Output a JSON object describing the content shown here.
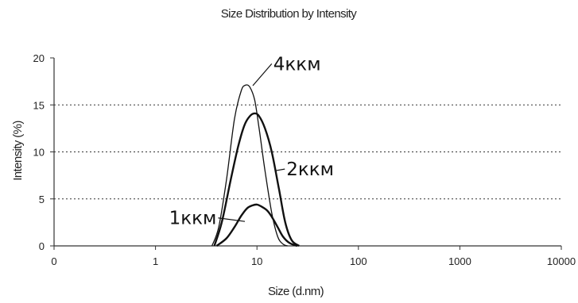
{
  "chart_data": {
    "type": "line",
    "title": "Size Distribution by Intensity",
    "xlabel": "Size (d.nm)",
    "ylabel": "Intensity (%)",
    "x_scale": "log",
    "xlim": [
      0.1,
      10000
    ],
    "ylim": [
      0,
      20
    ],
    "x_ticks": [
      0.1,
      1,
      10,
      100,
      1000,
      10000
    ],
    "x_tick_labels": [
      "0",
      "1",
      "10",
      "100",
      "1000",
      "10000"
    ],
    "y_ticks": [
      0,
      5,
      10,
      15,
      20
    ],
    "y_tick_labels": [
      "0",
      "5",
      "10",
      "15",
      "20"
    ],
    "grid": "horizontal dotted at 5, 10, 15",
    "series": [
      {
        "name": "4ккм",
        "x": [
          3.6,
          4.2,
          5.0,
          6.0,
          7.0,
          7.7,
          8.5,
          9.5,
          10.5,
          12.0,
          14.0,
          16.0,
          18.0,
          20.0
        ],
        "y": [
          0,
          2.0,
          7.0,
          13.5,
          16.5,
          17.1,
          16.9,
          15.5,
          12.5,
          8.0,
          3.5,
          1.0,
          0.2,
          0
        ]
      },
      {
        "name": "2ккм",
        "x": [
          3.8,
          4.5,
          5.5,
          6.5,
          7.5,
          8.5,
          9.5,
          10.5,
          12.0,
          14.0,
          16.5,
          19.0,
          22.0,
          26.0
        ],
        "y": [
          0,
          2.5,
          7.0,
          10.5,
          12.8,
          13.8,
          14.1,
          13.8,
          12.5,
          10.0,
          6.0,
          2.5,
          0.6,
          0
        ]
      },
      {
        "name": "1ккм",
        "x": [
          4.0,
          5.0,
          6.0,
          7.0,
          8.0,
          9.0,
          10.0,
          11.0,
          12.5,
          14.0,
          16.0,
          18.0,
          21.0,
          25.0
        ],
        "y": [
          0,
          0.8,
          2.0,
          3.2,
          4.0,
          4.3,
          4.4,
          4.2,
          3.8,
          3.1,
          2.0,
          1.0,
          0.3,
          0
        ]
      }
    ],
    "annotations": [
      {
        "text": "4ккм",
        "series": "4ккм"
      },
      {
        "text": "2ккм",
        "series": "2ккм"
      },
      {
        "text": "1ккм",
        "series": "1ккм"
      }
    ]
  }
}
